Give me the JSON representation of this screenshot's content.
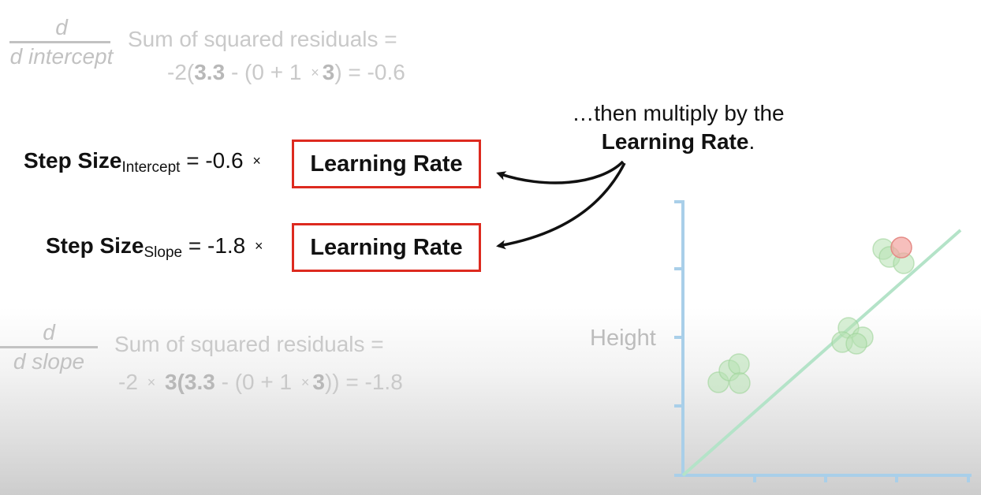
{
  "derivative_intercept": {
    "numerator": "d",
    "denominator": "d intercept",
    "line1": "Sum of squared residuals =",
    "line2_prefix": "-2(",
    "observed": "3.3",
    "minus_open": " - (0 + 1 ",
    "times": "×",
    "weight": "3",
    "close_result": ") = -0.6"
  },
  "step_intercept": {
    "label": "Step Size",
    "subscript": "Intercept",
    "equals_value": " = -0.6 ",
    "times": "×",
    "box_label": "Learning Rate"
  },
  "step_slope": {
    "label": "Step Size",
    "subscript": "Slope",
    "equals_value": " = -1.8 ",
    "times": "×",
    "box_label": "Learning Rate"
  },
  "callout": {
    "line1": "…then multiply by the",
    "line2_bold": "Learning Rate",
    "line2_end": "."
  },
  "derivative_slope": {
    "numerator": "d",
    "denominator": "d slope",
    "line1": "Sum of squared residuals =",
    "line2_a": "-2 ",
    "times": "×",
    "weight1": " 3",
    "paren_open": "(",
    "observed": "3.3",
    "minus_open": " - (0 + 1 ",
    "weight2": "3",
    "close_result": ")) = -1.8"
  },
  "plot": {
    "ylabel": "Height",
    "axis_color": "#9fc7e6",
    "line_color": "#b4e3c8",
    "point_color": "#b7e2b2",
    "highlight_color": "#f2a4a0"
  },
  "colors": {
    "highlight_box": "#dd2a1f"
  }
}
